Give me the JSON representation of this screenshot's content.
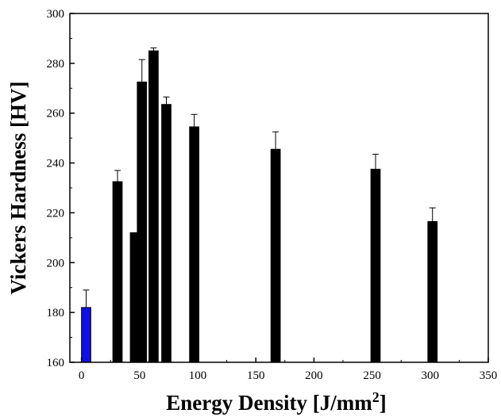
{
  "chart_data": {
    "type": "bar",
    "title": "",
    "xlabel": "Energy Density [J/mm",
    "xlabel_sup": "2",
    "xlabel_end": "]",
    "ylabel": "Vickers Hardness [HV]",
    "xlim": [
      -10,
      350
    ],
    "ylim": [
      160,
      300
    ],
    "xticks": [
      0,
      50,
      100,
      150,
      200,
      250,
      300,
      350
    ],
    "yticks": [
      160,
      180,
      200,
      220,
      240,
      260,
      280,
      300
    ],
    "grid": false,
    "bar_width": 8,
    "bars": [
      {
        "x": 4,
        "value": 182,
        "error": 7,
        "color": "#1010e0"
      },
      {
        "x": 31,
        "value": 232.5,
        "error": 4.5,
        "color": "#000000"
      },
      {
        "x": 46,
        "value": 212,
        "error": 0,
        "color": "#000000"
      },
      {
        "x": 52,
        "value": 272.5,
        "error": 9,
        "color": "#000000"
      },
      {
        "x": 62,
        "value": 285,
        "error": 1.2,
        "color": "#000000"
      },
      {
        "x": 73,
        "value": 263.5,
        "error": 3,
        "color": "#000000"
      },
      {
        "x": 97,
        "value": 254.5,
        "error": 5,
        "color": "#000000"
      },
      {
        "x": 167,
        "value": 245.5,
        "error": 7,
        "color": "#000000"
      },
      {
        "x": 253,
        "value": 237.5,
        "error": 6,
        "color": "#000000"
      },
      {
        "x": 302,
        "value": 216.5,
        "error": 5.5,
        "color": "#000000"
      }
    ]
  }
}
